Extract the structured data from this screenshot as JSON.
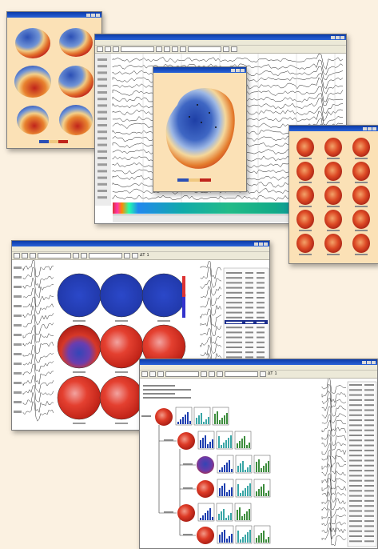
{
  "toolbar": {
    "zoom_label": "ΔT",
    "zoom_value": "1"
  },
  "secondary_toolbar": {
    "zoom_label": "ΔT",
    "zoom_value": "1"
  },
  "colors": {
    "background": "#fbf1e1",
    "map_panel": "#fbe1b6",
    "map_blue": "#2f53b8",
    "map_red": "#d22a1c",
    "titlebar": "#0a3aa8",
    "histogram_teal": "#3aa6a6",
    "histogram_green": "#3d8d3d"
  },
  "icons": [
    "head-map-icon",
    "window-close-icon",
    "trace-icon",
    "histogram-icon"
  ]
}
